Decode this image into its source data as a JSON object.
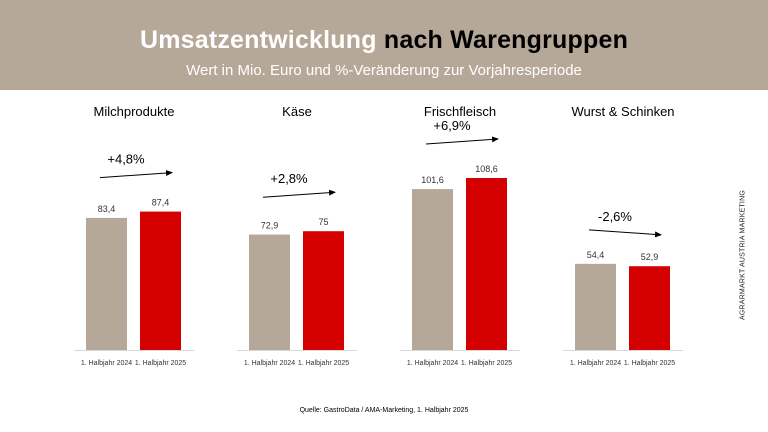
{
  "header": {
    "title_part1": "Umsatzentwicklung",
    "title_part2": "nach Warengruppen",
    "subtitle": "Wert in Mio. Euro und %-Veränderung zur Vorjahresperiode"
  },
  "colors": {
    "header_bg": "#b6a898",
    "bar_2024": "#b6a898",
    "bar_2025": "#d40000"
  },
  "chart_data": {
    "type": "bar",
    "title": "Umsatzentwicklung nach Warengruppen",
    "subtitle": "Wert in Mio. Euro und %-Veränderung zur Vorjahresperiode",
    "unit": "Mio. Euro",
    "series_names": [
      "1. Halbjahr 2024",
      "1. Halbjahr 2025"
    ],
    "groups": [
      {
        "category": "Milchprodukte",
        "values": [
          83.4,
          87.4
        ],
        "labels": [
          "83,4",
          "87,4"
        ],
        "change": "+4,8%"
      },
      {
        "category": "Käse",
        "values": [
          72.9,
          75
        ],
        "labels": [
          "72,9",
          "75"
        ],
        "change": "+2,8%"
      },
      {
        "category": "Frischfleisch",
        "values": [
          101.6,
          108.6
        ],
        "labels": [
          "101,6",
          "108,6"
        ],
        "change": "+6,9%"
      },
      {
        "category": "Wurst & Schinken",
        "values": [
          54.4,
          52.9
        ],
        "labels": [
          "54,4",
          "52,9"
        ],
        "change": "-2,6%"
      }
    ],
    "ylim": [
      0,
      108.6
    ]
  },
  "footer": {
    "source": "Quelle: GastroData / AMA-Marketing, 1. Halbjahr 2025"
  },
  "side_label": "AGRARMARKT AUSTRIA MARKETING"
}
